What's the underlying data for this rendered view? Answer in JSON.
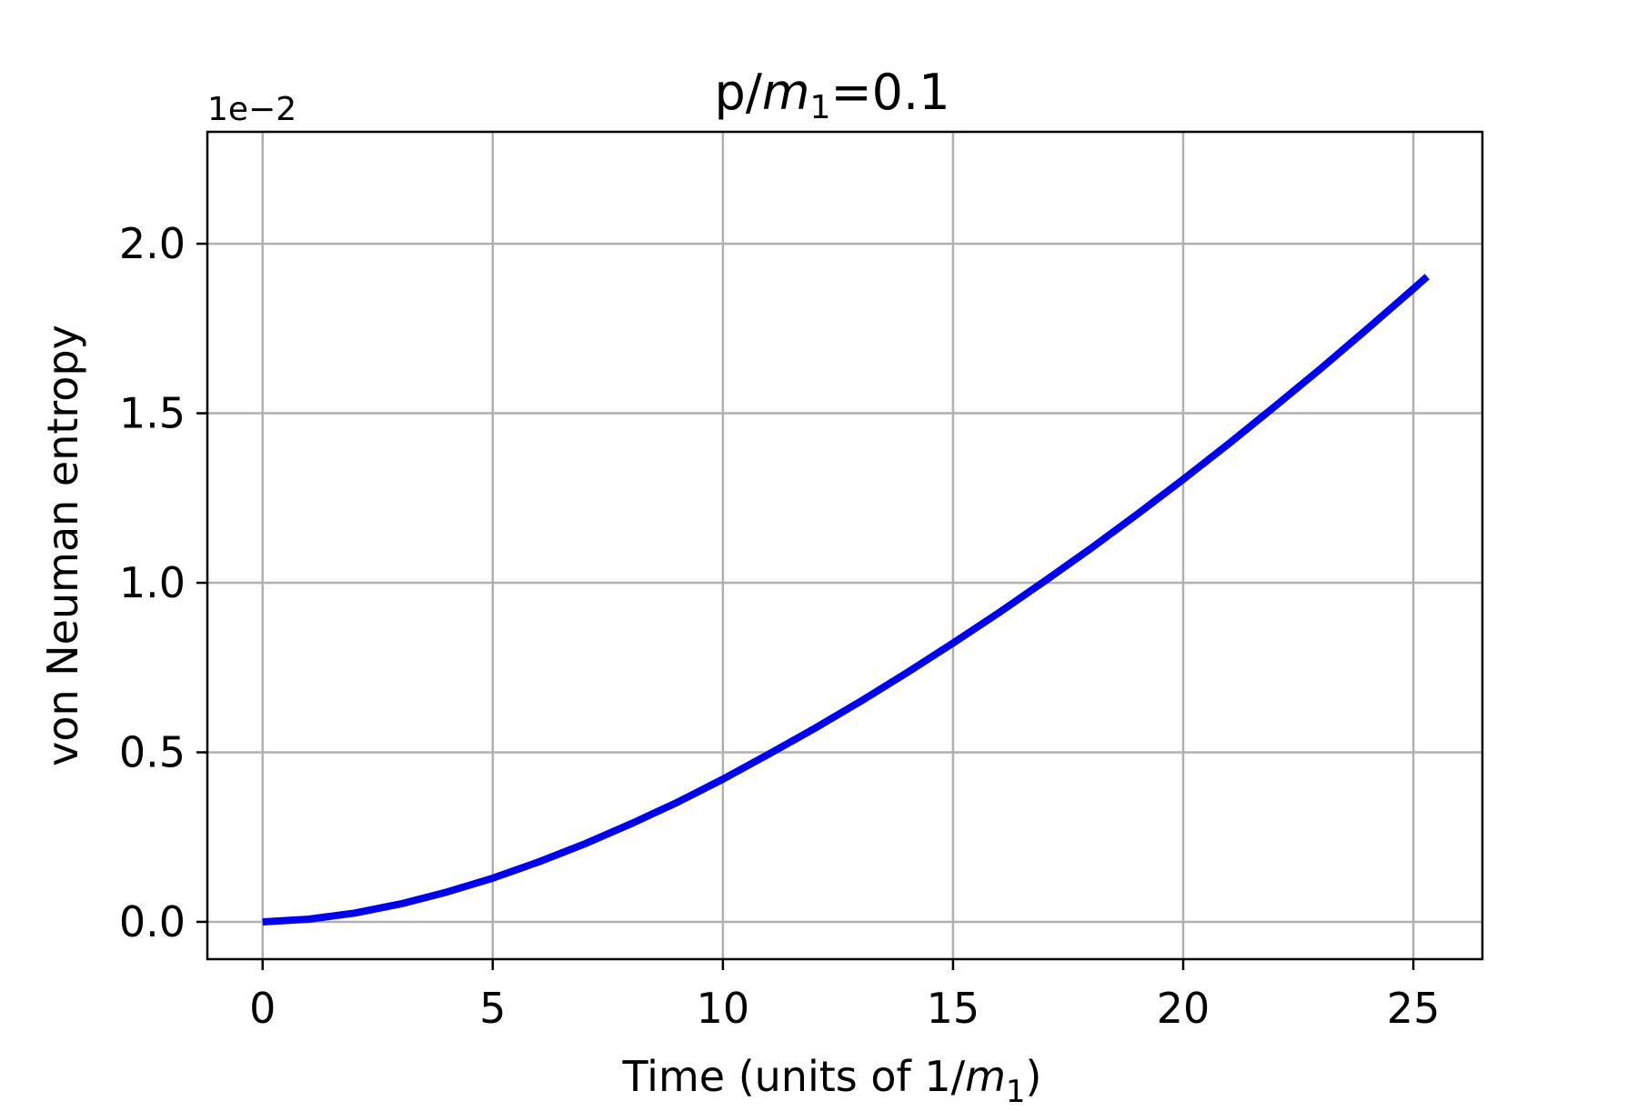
{
  "chart_data": {
    "type": "line",
    "title": "p/m1=0.1",
    "title_parts": {
      "prefix": "p/",
      "var": "m",
      "sub": "1",
      "suffix": "=0.1"
    },
    "xlabel": "Time (units of 1/m1)",
    "xlabel_parts": {
      "prefix": "Time (units of 1/",
      "var": "m",
      "sub": "1",
      "suffix": ")"
    },
    "ylabel": "von Neuman entropy",
    "y_offset_label": "1e−2",
    "xlim": [
      -1.2,
      26.5
    ],
    "ylim": [
      -0.11,
      2.33
    ],
    "x_ticks": [
      0,
      5,
      10,
      15,
      20,
      25
    ],
    "x_tick_labels": [
      "0",
      "5",
      "10",
      "15",
      "20",
      "25"
    ],
    "y_ticks": [
      0.0,
      0.5,
      1.0,
      1.5,
      2.0
    ],
    "y_tick_labels": [
      "0.0",
      "0.5",
      "1.0",
      "1.5",
      "2.0"
    ],
    "grid": true,
    "series": [
      {
        "color": "#0000ee",
        "x": [
          0,
          1,
          2,
          3,
          4,
          5,
          6,
          7,
          8,
          9,
          10,
          11,
          12,
          13,
          14,
          15,
          16,
          17,
          18,
          19,
          20,
          21,
          22,
          23,
          24,
          25,
          25.3
        ],
        "y": [
          0.0,
          0.008,
          0.026,
          0.053,
          0.088,
          0.129,
          0.177,
          0.23,
          0.289,
          0.352,
          0.421,
          0.495,
          0.571,
          0.651,
          0.735,
          0.822,
          0.912,
          1.006,
          1.102,
          1.202,
          1.305,
          1.411,
          1.521,
          1.633,
          1.749,
          1.867,
          1.903
        ]
      }
    ]
  }
}
